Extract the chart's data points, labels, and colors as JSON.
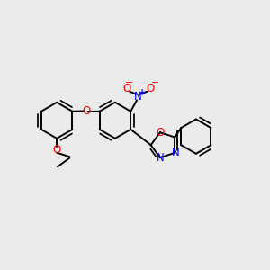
{
  "bg_color": "#ebebeb",
  "bond_color": "#000000",
  "N_color": "#0000ff",
  "O_color": "#ff0000",
  "bond_width": 1.4,
  "figsize": [
    3.0,
    3.0
  ],
  "dpi": 100,
  "xlim": [
    0,
    10
  ],
  "ylim": [
    0,
    10
  ]
}
